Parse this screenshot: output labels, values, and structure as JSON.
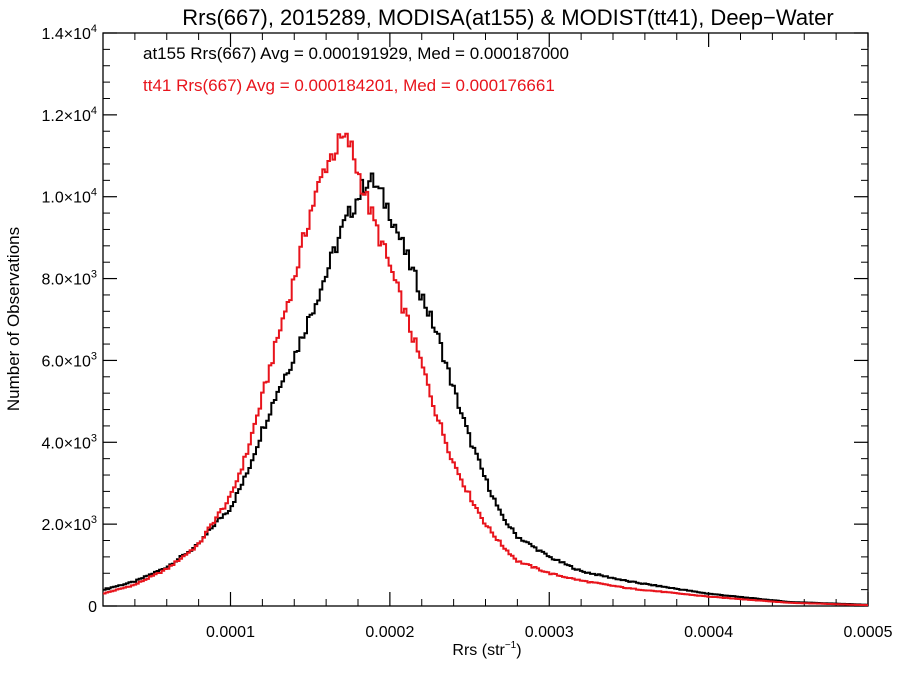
{
  "chart_data": {
    "type": "line",
    "title": "Rrs(667), 2015289, MODISA(at155) & MODIST(tt41), Deep−Water",
    "xlabel": "Rrs (str",
    "xlabel_sup": "−1",
    "xlabel_close": ")",
    "ylabel": "Number of Observations",
    "xlim": [
      2e-05,
      0.0005
    ],
    "ylim": [
      0,
      14000
    ],
    "x_ticks": [
      {
        "value": 0.0001,
        "label": "0.0001"
      },
      {
        "value": 0.0002,
        "label": "0.0002"
      },
      {
        "value": 0.0003,
        "label": "0.0003"
      },
      {
        "value": 0.0004,
        "label": "0.0004"
      },
      {
        "value": 0.0005,
        "label": "0.0005"
      }
    ],
    "y_ticks": [
      {
        "value": 0,
        "mant": "0",
        "exp": ""
      },
      {
        "value": 2000,
        "mant": "2.0×10",
        "exp": "3"
      },
      {
        "value": 4000,
        "mant": "4.0×10",
        "exp": "3"
      },
      {
        "value": 6000,
        "mant": "6.0×10",
        "exp": "3"
      },
      {
        "value": 8000,
        "mant": "8.0×10",
        "exp": "3"
      },
      {
        "value": 10000,
        "mant": "1.0×10",
        "exp": "4"
      },
      {
        "value": 12000,
        "mant": "1.2×10",
        "exp": "4"
      },
      {
        "value": 14000,
        "mant": "1.4×10",
        "exp": "4"
      }
    ],
    "annotations": [
      {
        "text": "at155 Rrs(667) Avg = 0.000191929, Med = 0.000187000",
        "color": "#000000"
      },
      {
        "text": "tt41 Rrs(667) Avg = 0.000184201, Med = 0.000176661",
        "color": "#e8141c"
      }
    ],
    "series": [
      {
        "color": "#000000",
        "x": [
          2e-05,
          4e-05,
          6e-05,
          8e-05,
          9e-05,
          0.0001,
          0.00011,
          0.00012,
          0.00013,
          0.00014,
          0.00015,
          0.00016,
          0.00017,
          0.00018,
          0.000185,
          0.00019,
          0.0002,
          0.00021,
          0.00022,
          0.00023,
          0.00024,
          0.00025,
          0.00026,
          0.00027,
          0.00028,
          0.0003,
          0.00032,
          0.00035,
          0.0004,
          0.00045,
          0.0005
        ],
        "y": [
          400,
          600,
          950,
          1500,
          2000,
          2400,
          3200,
          4300,
          5300,
          6100,
          7100,
          8100,
          9200,
          10000,
          10400,
          10350,
          9650,
          8600,
          7600,
          6600,
          5300,
          4100,
          3100,
          2200,
          1700,
          1200,
          850,
          600,
          300,
          100,
          30
        ]
      },
      {
        "color": "#e8141c",
        "x": [
          2e-05,
          4e-05,
          6e-05,
          8e-05,
          9e-05,
          0.0001,
          0.00011,
          0.00012,
          0.00013,
          0.00014,
          0.00015,
          0.00016,
          0.00017,
          0.000175,
          0.00018,
          0.00019,
          0.0002,
          0.00021,
          0.00022,
          0.00023,
          0.00024,
          0.00025,
          0.00026,
          0.00027,
          0.00028,
          0.0003,
          0.00032,
          0.00035,
          0.0004,
          0.00045,
          0.0005
        ],
        "y": [
          300,
          520,
          900,
          1500,
          2100,
          2650,
          3700,
          5100,
          6600,
          8000,
          9600,
          10800,
          11400,
          11300,
          10600,
          9400,
          8300,
          7100,
          5900,
          4600,
          3500,
          2700,
          2000,
          1500,
          1100,
          800,
          620,
          430,
          230,
          80,
          20
        ]
      }
    ]
  }
}
